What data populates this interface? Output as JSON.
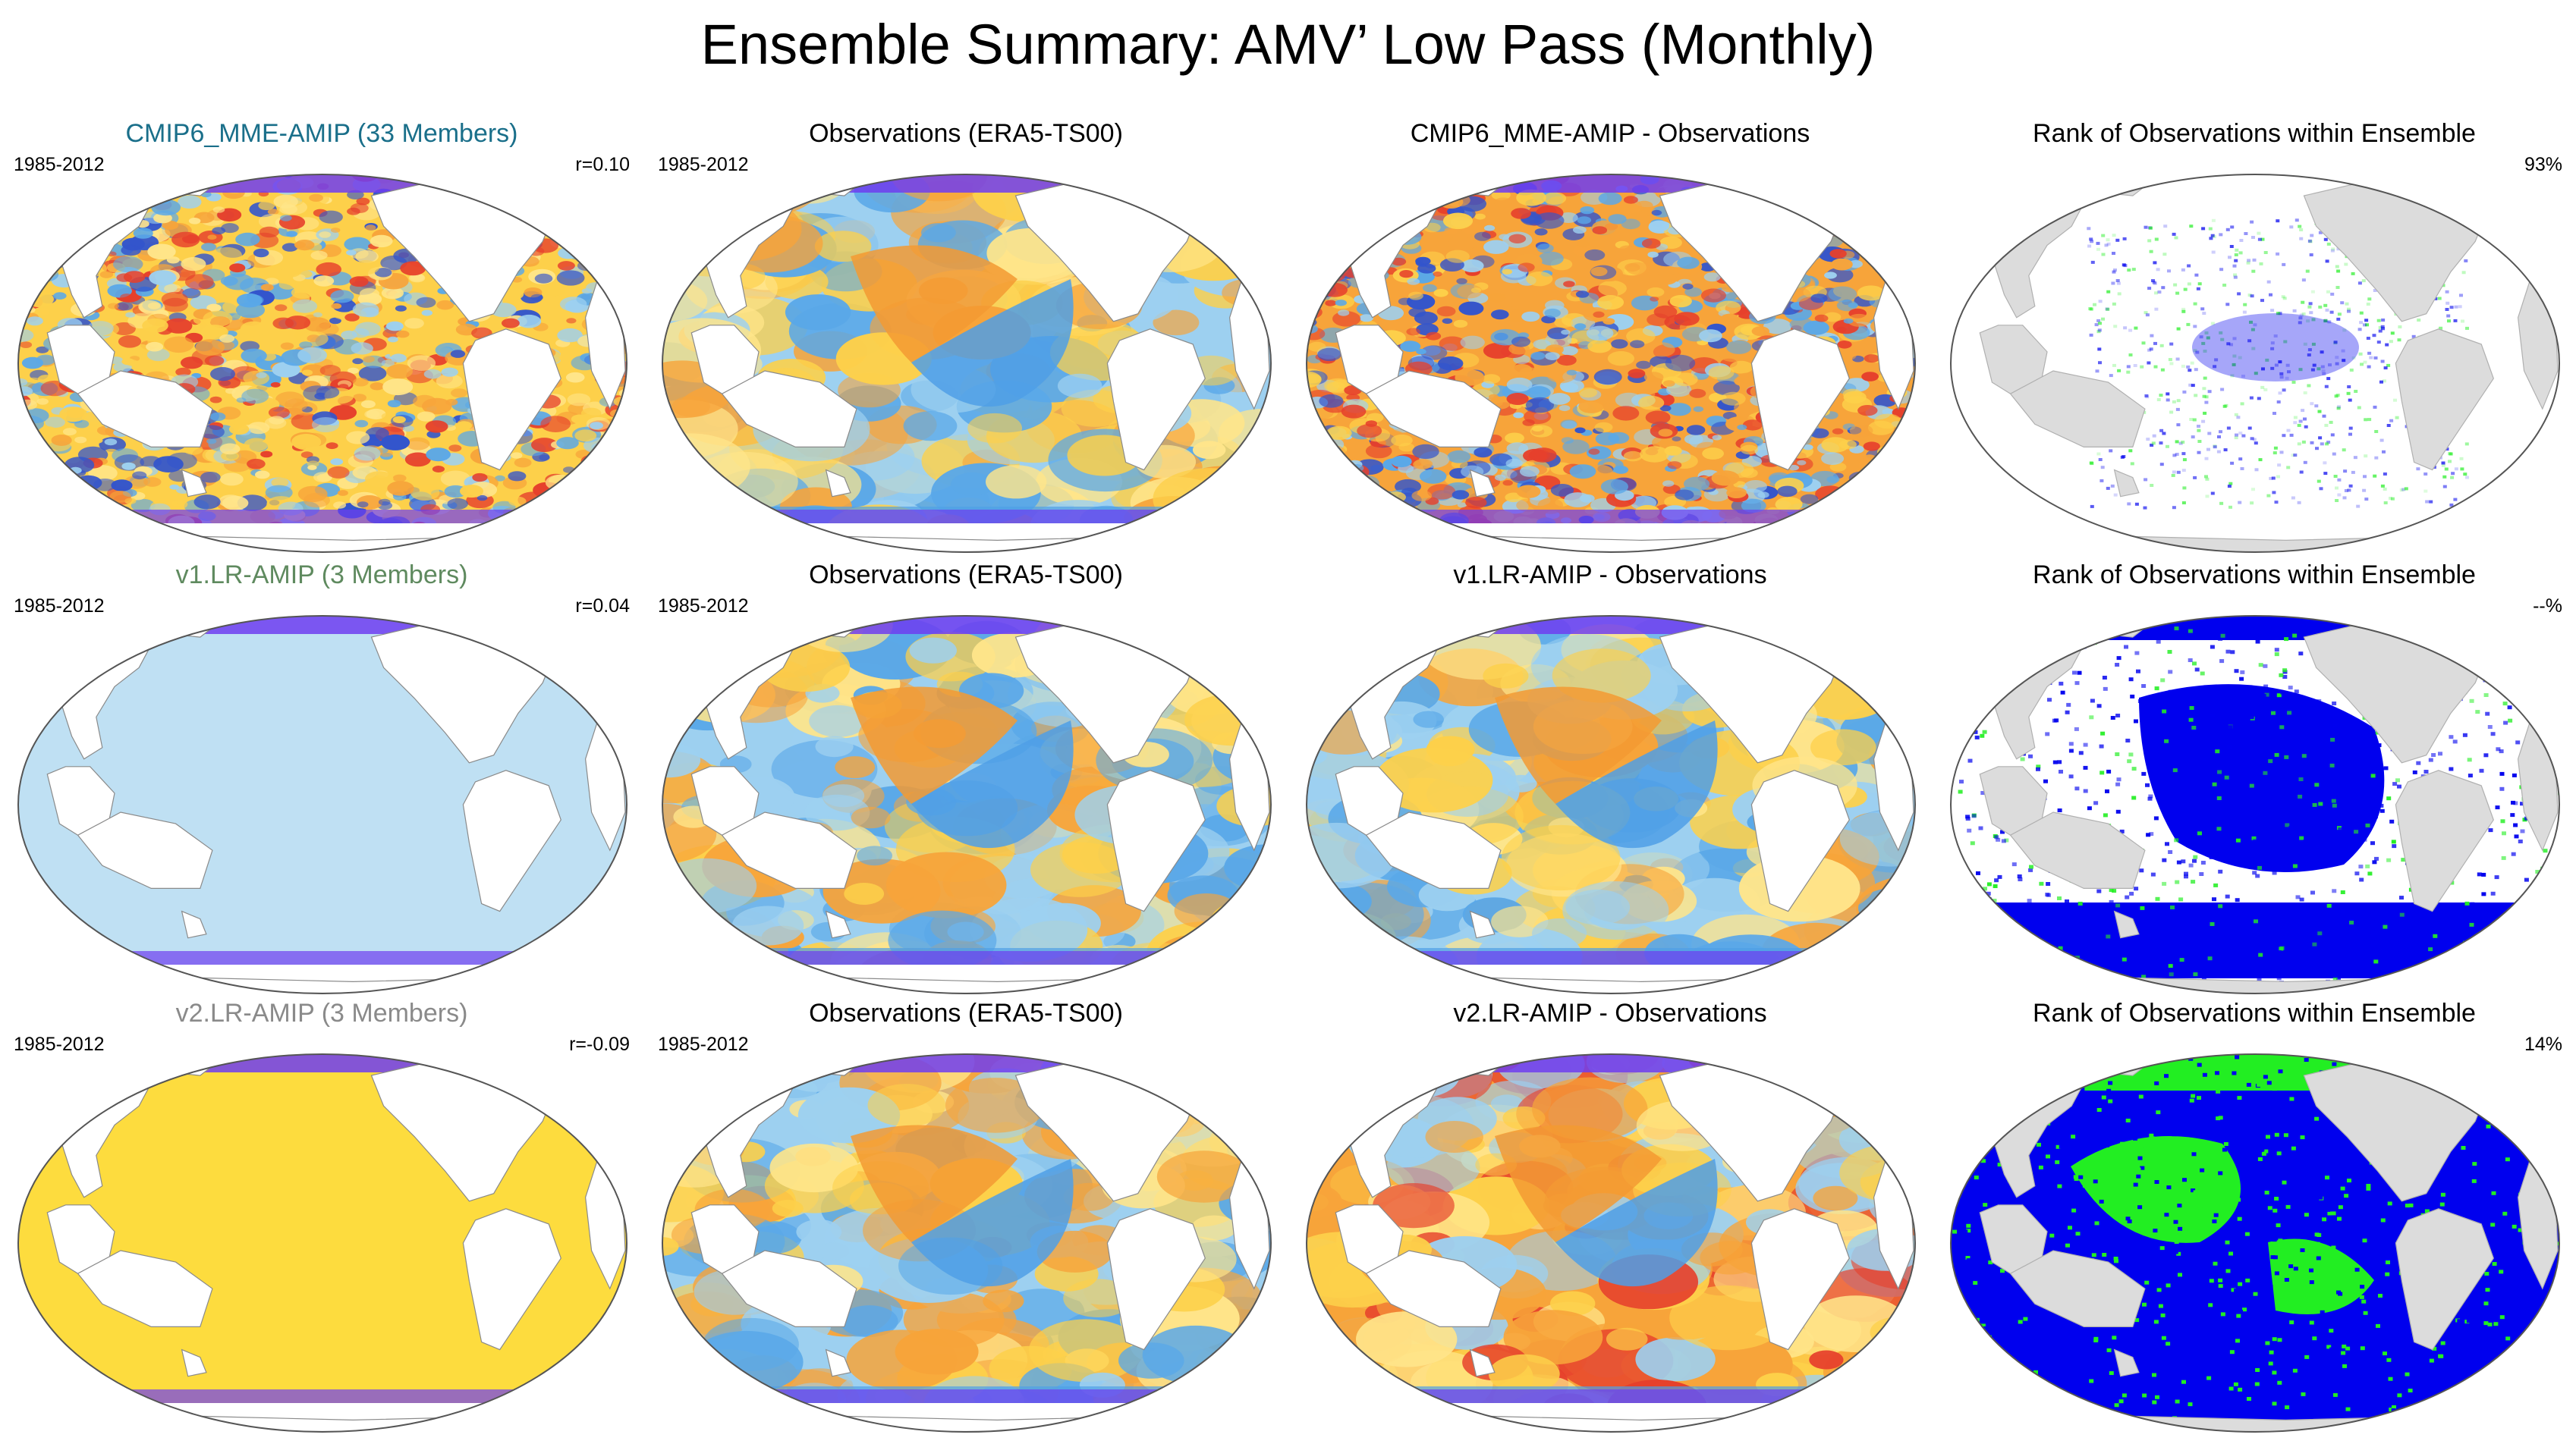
{
  "page": {
    "title": "Ensemble Summary: AMV’ Low Pass (Monthly)"
  },
  "rows": [
    {
      "model": {
        "title": "CMIP6_MME-AMIP (33 Members)",
        "title_color": "#1a6f8a",
        "period": "1985-2012",
        "corr": "r=0.10",
        "fill": "noisy"
      },
      "obs": {
        "title": "Observations (ERA5-TS00)",
        "period": "1985-2012"
      },
      "diff": {
        "title": "CMIP6_MME-AMIP - Observations",
        "fill": "noisy"
      },
      "rank": {
        "title": "Rank of Observations within Ensemble",
        "pct": "93%",
        "fill": "sparse"
      }
    },
    {
      "model": {
        "title": "v1.LR-AMIP (3 Members)",
        "title_color": "#5f8a5f",
        "period": "1985-2012",
        "corr": "r=0.04",
        "fill": "#bfe0f3"
      },
      "obs": {
        "title": "Observations (ERA5-TS00)",
        "period": "1985-2012"
      },
      "diff": {
        "title": "v1.LR-AMIP - Observations",
        "fill": "smooth"
      },
      "rank": {
        "title": "Rank of Observations within Ensemble",
        "pct": "--%",
        "fill": "blue"
      }
    },
    {
      "model": {
        "title": "v2.LR-AMIP (3 Members)",
        "title_color": "#8a8a8a",
        "period": "1985-2012",
        "corr": "r=-0.09",
        "fill": "#fddc3e"
      },
      "obs": {
        "title": "Observations (ERA5-TS00)",
        "period": "1985-2012"
      },
      "diff": {
        "title": "v2.LR-AMIP - Observations",
        "fill": "smooth"
      },
      "rank": {
        "title": "Rank of Observations within Ensemble",
        "pct": "14%",
        "fill": "bluegreen"
      }
    }
  ],
  "colors": {
    "land": "#ffffff",
    "land_rank": "#dcdcdc",
    "ocean_warm": "#f0a43a",
    "ocean_cool": "#52a3e6",
    "rank_blue": "#0000ee",
    "rank_green": "#22ee22"
  }
}
